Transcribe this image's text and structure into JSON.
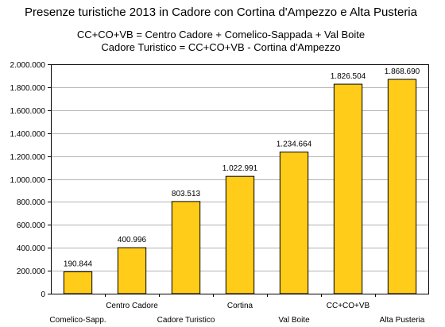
{
  "chart_data": {
    "type": "bar",
    "title": "Presenze turistiche 2013 in Cadore con Cortina d'Ampezzo e Alta Pusteria",
    "subtitle_lines": [
      "CC+CO+VB = Centro Cadore + Comelico-Sappada + Val Boite",
      "Cadore Turistico = CC+CO+VB - Cortina d'Ampezzo"
    ],
    "categories": [
      "Comelico-Sapp.",
      "Centro Cadore",
      "Cadore Turistico",
      "Cortina",
      "Val Boite",
      "CC+CO+VB",
      "Alta Pusteria"
    ],
    "values": [
      190844,
      400996,
      803513,
      1022991,
      1234664,
      1826504,
      1868690
    ],
    "data_labels": [
      "190.844",
      "400.996",
      "803.513",
      "1.022.991",
      "1.234.664",
      "1.826.504",
      "1.868.690"
    ],
    "y_ticks": [
      0,
      200000,
      400000,
      600000,
      800000,
      1000000,
      1200000,
      1400000,
      1600000,
      1800000,
      2000000
    ],
    "y_tick_labels": [
      "0",
      "200.000",
      "400.000",
      "600.000",
      "800.000",
      "1.000.000",
      "1.200.000",
      "1.400.000",
      "1.600.000",
      "1.800.000",
      "2.000.000"
    ],
    "ylim": [
      0,
      2000000
    ],
    "xlabel": "",
    "ylabel": "",
    "grid": true,
    "legend": "none",
    "bar_color": "#ffcc1a",
    "bar_stroke": "#000000",
    "grid_color": "#b3b3b3"
  }
}
